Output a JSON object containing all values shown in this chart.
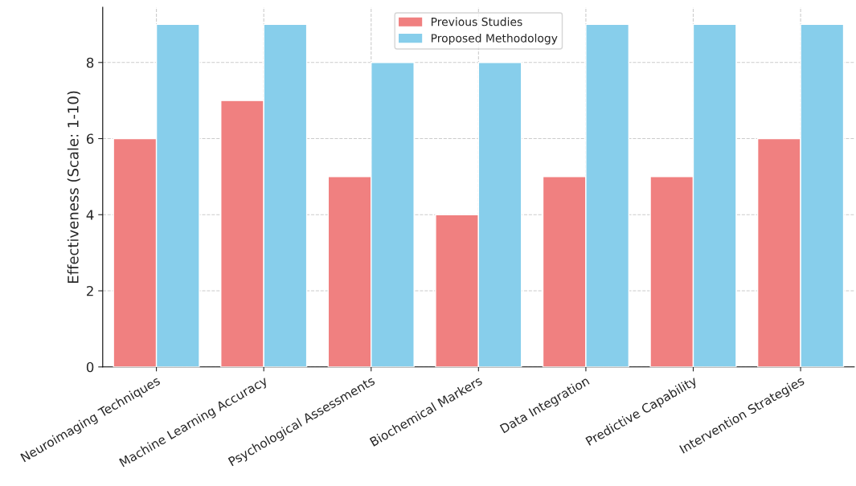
{
  "chart_data": {
    "type": "bar",
    "ylabel": "Effectiveness (Scale: 1-10)",
    "categories": [
      "Neuroimaging Techniques",
      "Machine Learning Accuracy",
      "Psychological Assessments",
      "Biochemical Markers",
      "Data Integration",
      "Predictive Capability",
      "Intervention Strategies"
    ],
    "series": [
      {
        "name": "Previous Studies",
        "color": "#f08080",
        "values": [
          6,
          7,
          5,
          4,
          5,
          5,
          6
        ]
      },
      {
        "name": "Proposed Methodology",
        "color": "#87ceeb",
        "values": [
          9,
          9,
          8,
          8,
          9,
          9,
          9
        ]
      }
    ],
    "ylim": [
      0,
      9.45
    ],
    "yticks": [
      0,
      2,
      4,
      6,
      8
    ],
    "grid": true,
    "line_style": "dashed",
    "legend": "top"
  }
}
